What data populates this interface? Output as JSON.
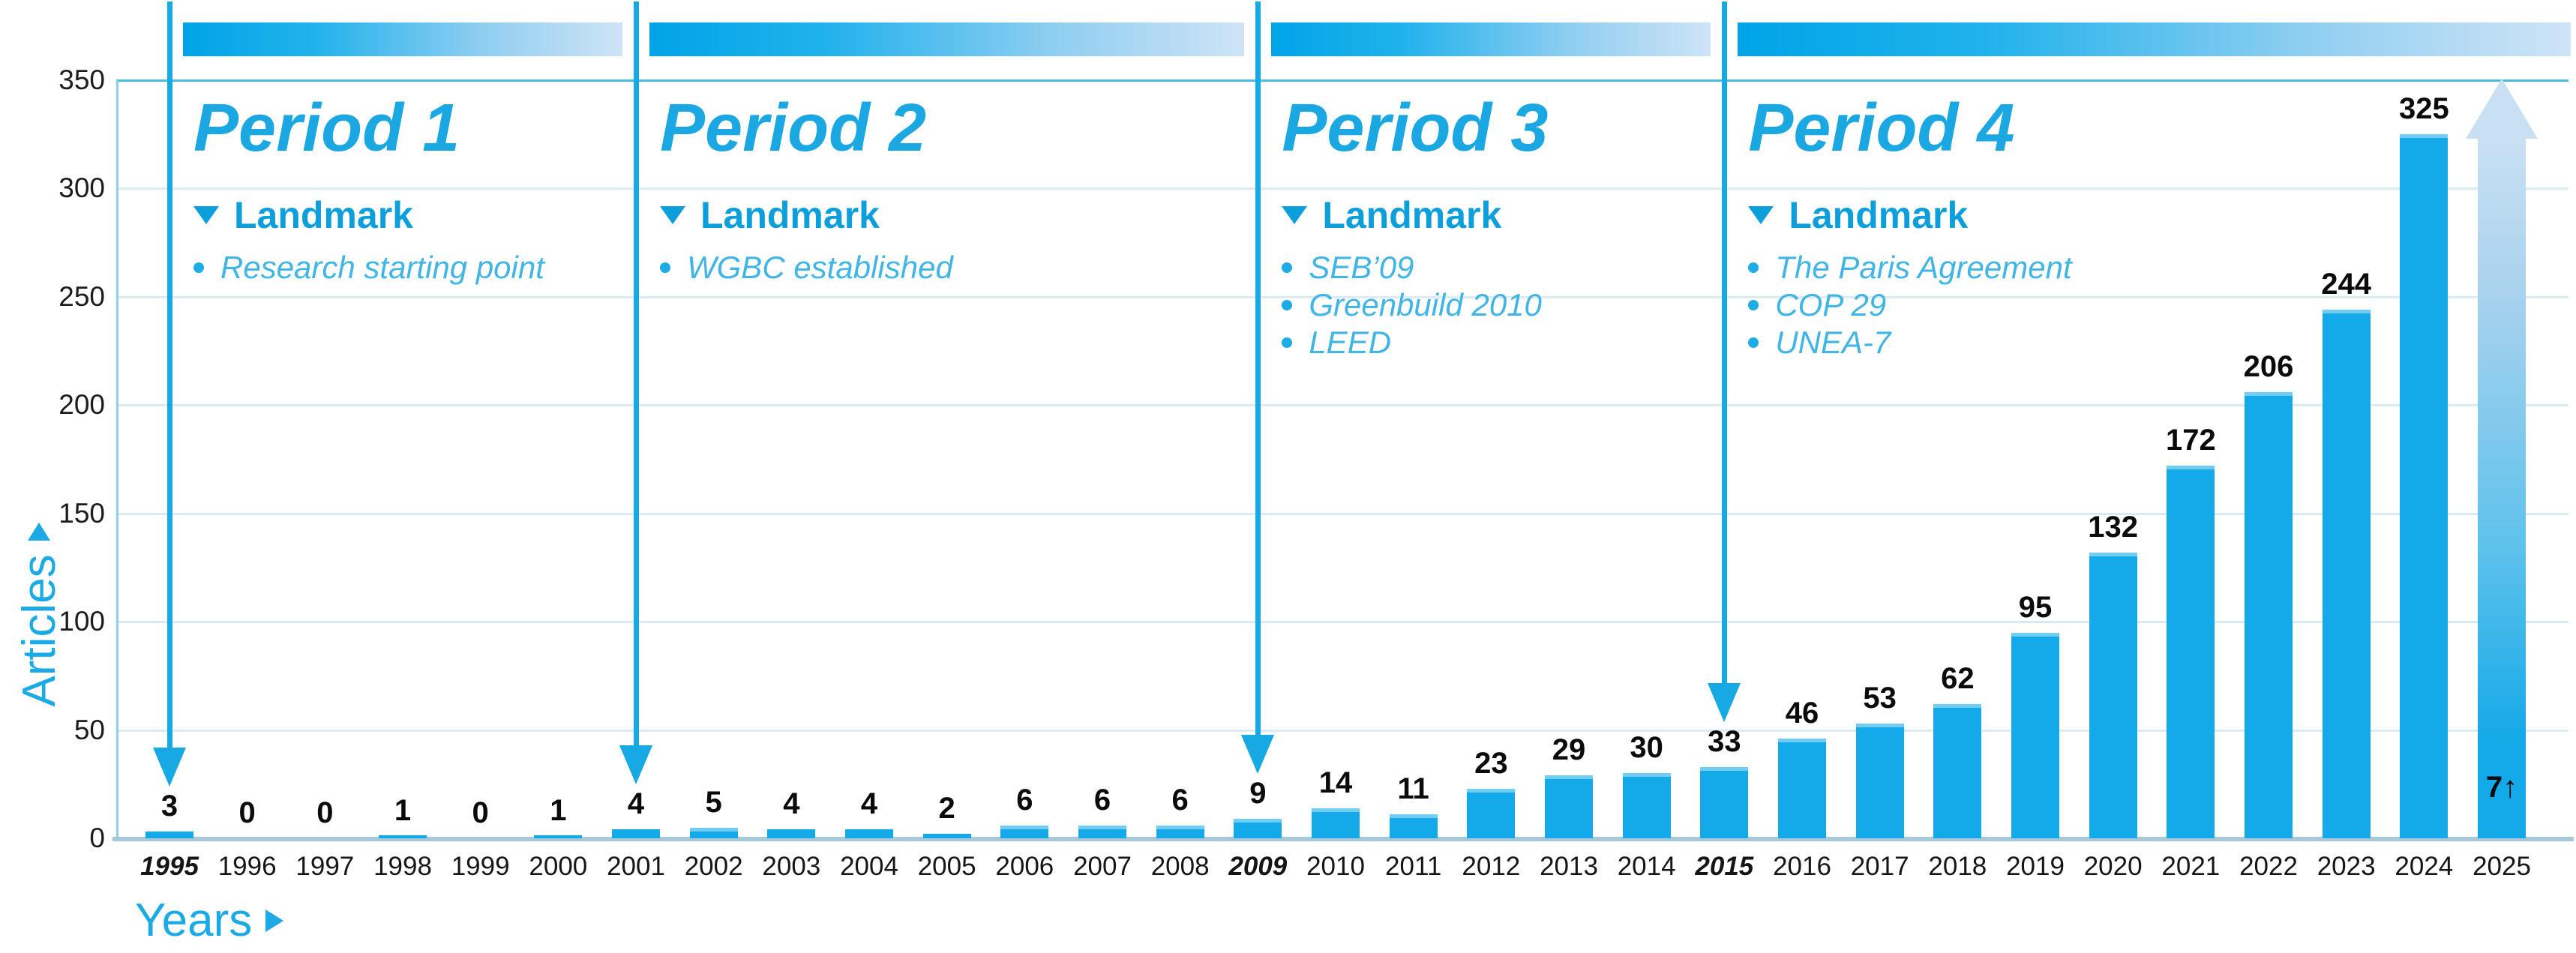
{
  "chart_data": {
    "type": "bar",
    "title": "",
    "ylabel": "Articles",
    "xlabel": "Years",
    "ylim": [
      0,
      350
    ],
    "yticks": [
      0,
      50,
      100,
      150,
      200,
      250,
      300,
      350
    ],
    "grid": true,
    "legend_position": "none",
    "x": [
      "1995",
      "1996",
      "1997",
      "1998",
      "1999",
      "2000",
      "2001",
      "2002",
      "2003",
      "2004",
      "2005",
      "2006",
      "2007",
      "2008",
      "2009",
      "2010",
      "2011",
      "2012",
      "2013",
      "2014",
      "2015",
      "2016",
      "2017",
      "2018",
      "2019",
      "2020",
      "2021",
      "2022",
      "2023",
      "2024",
      "2025"
    ],
    "values": [
      3,
      0,
      0,
      1,
      0,
      1,
      4,
      5,
      4,
      4,
      2,
      6,
      6,
      6,
      9,
      14,
      11,
      23,
      29,
      30,
      33,
      46,
      53,
      62,
      95,
      132,
      172,
      206,
      244,
      325,
      7
    ],
    "bold_tick_years": [
      "1995",
      "2009",
      "2015"
    ],
    "final_bar": {
      "year": "2025",
      "value_label": "7",
      "style": "gradient-up-arrow"
    }
  },
  "periods": [
    {
      "title": "Period 1",
      "start_year": "1995",
      "landmark_heading": "Landmark",
      "bullets": [
        "Research starting point"
      ]
    },
    {
      "title": "Period 2",
      "start_year": "2001",
      "landmark_heading": "Landmark",
      "bullets": [
        "WGBC established"
      ]
    },
    {
      "title": "Period 3",
      "start_year": "2009",
      "landmark_heading": "Landmark",
      "bullets": [
        "SEB’09",
        "Greenbuild 2010",
        "LEED"
      ]
    },
    {
      "title": "Period 4",
      "start_year": "2015",
      "landmark_heading": "Landmark",
      "bullets": [
        "The Paris Agreement",
        "COP 29",
        "UNEA-7"
      ]
    }
  ],
  "icons": {
    "landmark_marker": "triangle-down-icon",
    "bullet_marker": "dot-icon",
    "axis_arrow": "triangle-right-icon",
    "up_arrow_glyph": "↑"
  },
  "colors": {
    "bar": "#14a9e8",
    "bar_top_cap": "#72cdf3",
    "divider_arrow": "#17a9e3",
    "period_title": "#1ba7e2",
    "landmark_text": "#0c9fdb",
    "bullet_text": "#41b5e5",
    "gridline": "#dcebf4",
    "top_border": "#49bce5",
    "baseline": "#a6c8d9",
    "header_gradient_start": "#00a4e7",
    "header_gradient_end": "#cfe4f6",
    "final_arrow_top": "#c9e0f3",
    "tick_text": "#1c1c1c",
    "axis_title": "#1baae5"
  }
}
